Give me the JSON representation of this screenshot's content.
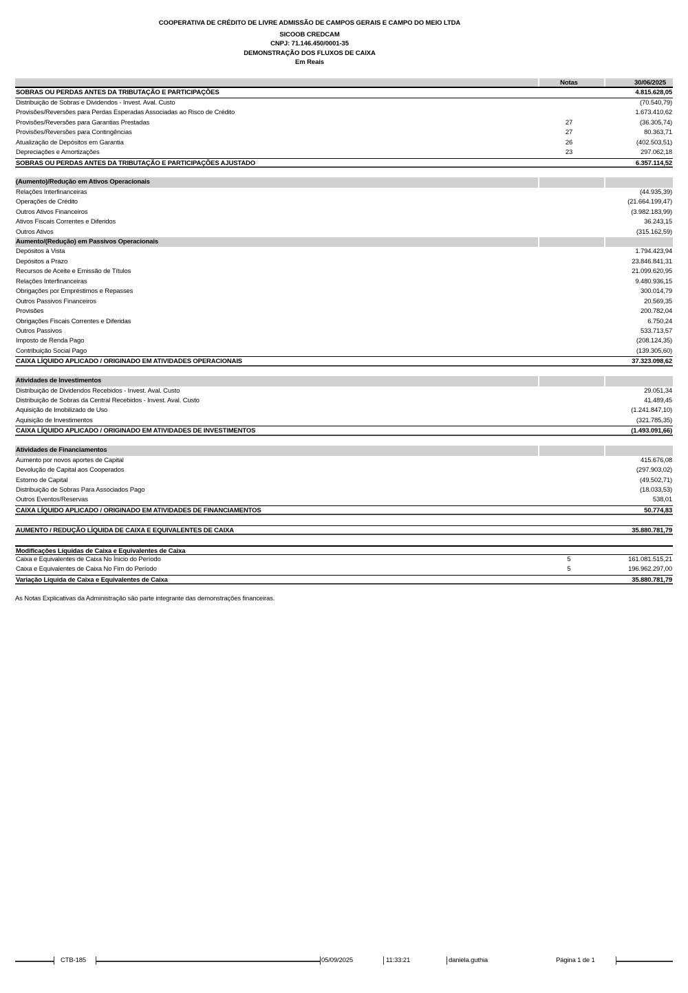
{
  "header": {
    "company": "COOPERATIVA DE CRÉDITO DE LIVRE ADMISSÃO DE CAMPOS GERAIS E CAMPO DO MEIO LTDA",
    "name": "SICOOB CREDCAM",
    "cnpj": "CNPJ: 71.146.450/0001-35",
    "title": "DEMONSTRAÇÃO DOS FLUXOS DE CAIXA",
    "unit": "Em Reais"
  },
  "table": {
    "col_notas": "Notas",
    "col_date": "30/06/2025",
    "rows": [
      {
        "type": "first",
        "label": "SOBRAS OU PERDAS ANTES DA TRIBUTAÇÃO E PARTICIPAÇÕES",
        "nota": "",
        "value": "4.815.628,05"
      },
      {
        "type": "line",
        "label": "Distribuição de Sobras e Dividendos - Invest. Aval. Custo",
        "nota": "",
        "value": "(70.540,79)"
      },
      {
        "type": "line",
        "label": "Provisões/Reversões para Perdas Esperadas Associadas ao Risco de Crédito",
        "nota": "",
        "value": "1.673.410,62"
      },
      {
        "type": "line",
        "label": "Provisões/Reversões para Garantias Prestadas",
        "nota": "27",
        "value": "(36.305,74)"
      },
      {
        "type": "line",
        "label": "Provisões/Reversões para Contingências",
        "nota": "27",
        "value": "80.363,71"
      },
      {
        "type": "line",
        "label": "Atualização de Depósitos em Garantia",
        "nota": "26",
        "value": "(402.503,51)"
      },
      {
        "type": "line",
        "label": "Depreciações e Amortizações",
        "nota": "23",
        "value": "297.062,18"
      },
      {
        "type": "total",
        "label": "SOBRAS OU PERDAS ANTES DA TRIBUTAÇÃO E PARTICIPAÇÕES AJUSTADO",
        "nota": "",
        "value": "6.357.114,52"
      },
      {
        "type": "spacer",
        "label": "",
        "nota": "",
        "value": ""
      },
      {
        "type": "section",
        "label": "(Aumento)/Redução em Ativos Operacionais",
        "nota": "",
        "value": ""
      },
      {
        "type": "line",
        "label": "Relações Interfinanceiras",
        "nota": "",
        "value": "(44.935,39)"
      },
      {
        "type": "line",
        "label": "Operações de Crédito",
        "nota": "",
        "value": "(21.664.199,47)"
      },
      {
        "type": "line",
        "label": "Outros Ativos Financeiros",
        "nota": "",
        "value": "(3.982.183,99)"
      },
      {
        "type": "line",
        "label": "Ativos Fiscais Correntes e Diferidos",
        "nota": "",
        "value": "36.243,15"
      },
      {
        "type": "line",
        "label": "Outros Ativos",
        "nota": "",
        "value": "(315.162,59)"
      },
      {
        "type": "section",
        "label": "Aumento/(Redução) em Passivos Operacionais",
        "nota": "",
        "value": ""
      },
      {
        "type": "line",
        "label": "Depósitos à Vista",
        "nota": "",
        "value": "1.794.423,94"
      },
      {
        "type": "line",
        "label": "Depósitos a Prazo",
        "nota": "",
        "value": "23.846.841,31"
      },
      {
        "type": "line",
        "label": "Recursos de Aceite e Emissão de Títulos",
        "nota": "",
        "value": "21.099.620,95"
      },
      {
        "type": "line",
        "label": "Relações Interfinanceiras",
        "nota": "",
        "value": "9.480.936,15"
      },
      {
        "type": "line",
        "label": "Obrigações por Empréstimos e Repasses",
        "nota": "",
        "value": "300.014,79"
      },
      {
        "type": "line",
        "label": "Outros Passivos Financeiros",
        "nota": "",
        "value": "20.569,35"
      },
      {
        "type": "line",
        "label": "Provisões",
        "nota": "",
        "value": "200.782,04"
      },
      {
        "type": "line",
        "label": "Obrigações Fiscais Correntes e Diferidas",
        "nota": "",
        "value": "6.750,24"
      },
      {
        "type": "line",
        "label": "Outros Passivos",
        "nota": "",
        "value": "533.713,57"
      },
      {
        "type": "line",
        "label": "Imposto de Renda Pago",
        "nota": "",
        "value": "(208.124,35)"
      },
      {
        "type": "line",
        "label": "Contribuição Social Pago",
        "nota": "",
        "value": "(139.305,60)"
      },
      {
        "type": "total",
        "label": "CAIXA LÍQUIDO APLICADO / ORIGINADO EM ATIVIDADES OPERACIONAIS",
        "nota": "",
        "value": "37.323.098,62"
      },
      {
        "type": "spacer",
        "label": "",
        "nota": "",
        "value": ""
      },
      {
        "type": "section",
        "label": "Atividades de Investimentos",
        "nota": "",
        "value": ""
      },
      {
        "type": "line",
        "label": "Distribuição de Dividendos Recebidos - Invest. Aval. Custo",
        "nota": "",
        "value": "29.051,34"
      },
      {
        "type": "line",
        "label": "Distribuição de Sobras da Central Recebidos - Invest. Aval. Custo",
        "nota": "",
        "value": "41.489,45"
      },
      {
        "type": "line",
        "label": "Aquisição de Imobilizado de Uso",
        "nota": "",
        "value": "(1.241.847,10)"
      },
      {
        "type": "line",
        "label": "Aquisição de Investimentos",
        "nota": "",
        "value": "(321.785,35)"
      },
      {
        "type": "total",
        "label": "CAIXA LÍQUIDO APLICADO / ORIGINADO EM ATIVIDADES DE INVESTIMENTOS",
        "nota": "",
        "value": "(1.493.091,66)"
      },
      {
        "type": "spacer",
        "label": "",
        "nota": "",
        "value": ""
      },
      {
        "type": "section",
        "label": "Atividades de Financiamentos",
        "nota": "",
        "value": ""
      },
      {
        "type": "line",
        "label": "Aumento por novos aportes de Capital",
        "nota": "",
        "value": "415.676,08"
      },
      {
        "type": "line",
        "label": "Devolução de Capital aos Cooperados",
        "nota": "",
        "value": "(297.903,02)"
      },
      {
        "type": "line",
        "label": "Estorno de Capital",
        "nota": "",
        "value": "(49.502,71)"
      },
      {
        "type": "line",
        "label": "Distribuição de Sobras Para Associados Pago",
        "nota": "",
        "value": "(18.033,53)"
      },
      {
        "type": "line",
        "label": "Outros Eventos/Reservas",
        "nota": "",
        "value": "538,01"
      },
      {
        "type": "total",
        "label": "CAIXA LÍQUIDO APLICADO / ORIGINADO EM ATIVIDADES DE FINANCIAMENTOS",
        "nota": "",
        "value": "50.774,83"
      },
      {
        "type": "spacer",
        "label": "",
        "nota": "",
        "value": ""
      },
      {
        "type": "total",
        "label": "AUMENTO / REDUÇÃO LÍQUIDA DE CAIXA E EQUIVALENTES DE CAIXA",
        "nota": "",
        "value": "35.880.781,79"
      },
      {
        "type": "spacer",
        "label": "",
        "nota": "",
        "value": ""
      },
      {
        "type": "modhdr",
        "label": "Modificações Líquidas de Caixa e Equivalentes de Caixa",
        "nota": "",
        "value": ""
      },
      {
        "type": "line",
        "label": "Caixa e Equivalentes de Caixa No Ínicio do Período",
        "nota": "5",
        "value": "161.081.515,21"
      },
      {
        "type": "line",
        "label": "Caixa e Equivalentes de Caixa No Fim do Período",
        "nota": "5",
        "value": "196.962.297,00"
      },
      {
        "type": "total",
        "label": "Variação Líquida de Caixa e Equivalentes de Caixa",
        "nota": "",
        "value": "35.880.781,79"
      }
    ]
  },
  "note": "As Notas Explicativas da Administração são parte integrante das demonstrações financeiras.",
  "footer": {
    "report_code": "CTB-185",
    "date": "05/09/2025",
    "time": "11:33:21",
    "user": "daniela.guthia",
    "page": "Página 1 de  1"
  }
}
